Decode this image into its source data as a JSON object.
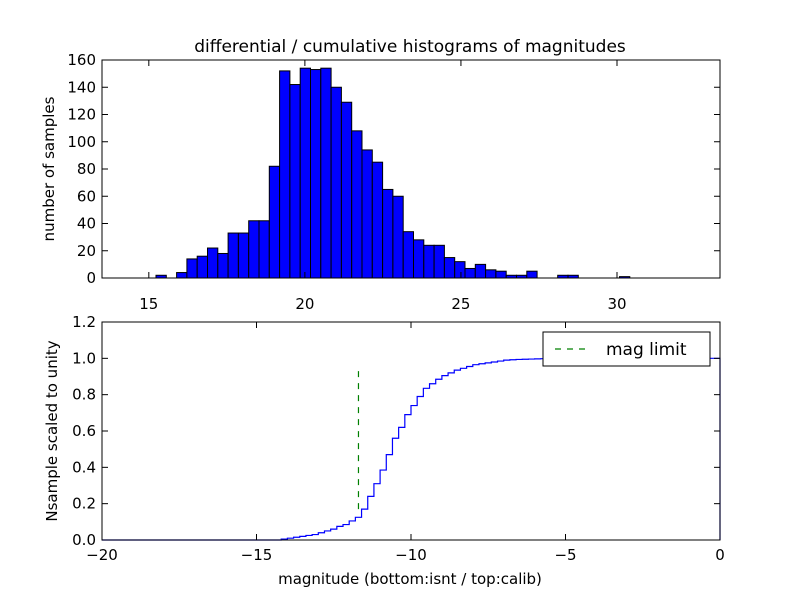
{
  "chart_data": [
    {
      "type": "bar",
      "subtype": "histogram",
      "title": "differential / cumulative histograms of magnitudes",
      "xlabel": "",
      "ylabel": "number of samples",
      "xlim": [
        13.5,
        33.3
      ],
      "ylim": [
        0,
        160
      ],
      "xticks": [
        15,
        20,
        25,
        30
      ],
      "xtick_labels": [
        "15",
        "20",
        "25",
        "30"
      ],
      "yticks": [
        0,
        20,
        40,
        60,
        80,
        100,
        120,
        140,
        160
      ],
      "ytick_labels": [
        "0",
        "20",
        "40",
        "60",
        "80",
        "100",
        "120",
        "140",
        "160"
      ],
      "bin_width": 0.33,
      "bin_start": 15.23,
      "values": [
        2,
        0,
        4,
        14,
        16,
        22,
        18,
        33,
        33,
        42,
        42,
        82,
        152,
        142,
        154,
        153,
        154,
        140,
        129,
        108,
        94,
        85,
        65,
        60,
        34,
        28,
        24,
        24,
        15,
        12,
        7,
        10,
        6,
        5,
        2,
        2,
        5,
        0,
        0,
        2,
        2,
        0,
        0,
        0,
        0,
        1
      ],
      "bar_color": "#0000ff",
      "edge_color": "#000000"
    },
    {
      "type": "line",
      "subtype": "cumulative-step",
      "xlabel": "magnitude (bottom:isnt / top:calib)",
      "ylabel": "Nsample scaled to unity",
      "xlim": [
        -20,
        0
      ],
      "ylim": [
        0,
        1.2
      ],
      "xticks": [
        -20,
        -15,
        -10,
        -5,
        0
      ],
      "xtick_labels": [
        "−20",
        "−15",
        "−10",
        "−5",
        "0"
      ],
      "yticks": [
        0,
        0.2,
        0.4,
        0.6,
        0.8,
        1.0,
        1.2
      ],
      "ytick_labels": [
        "0.0",
        "0.2",
        "0.4",
        "0.6",
        "0.8",
        "1.0",
        "1.2"
      ],
      "series": [
        {
          "name": "cumulative",
          "color": "#0000ff",
          "x": [
            -20,
            -14.2,
            -14,
            -13.8,
            -13.6,
            -13.4,
            -13.2,
            -13,
            -12.8,
            -12.6,
            -12.4,
            -12.2,
            -12,
            -11.8,
            -11.6,
            -11.4,
            -11.2,
            -11,
            -10.8,
            -10.6,
            -10.4,
            -10.2,
            -10,
            -9.8,
            -9.6,
            -9.4,
            -9.2,
            -9,
            -8.8,
            -8.6,
            -8.4,
            -8.2,
            -8,
            -7.8,
            -7.6,
            -7.4,
            -7.2,
            -7,
            -6.8,
            -6.6,
            -6.4,
            -6.2,
            -6,
            -5.8,
            -5.6,
            -5.2,
            -4.8,
            -4.4,
            -4,
            -3.5,
            0
          ],
          "y": [
            0.0,
            0.005,
            0.01,
            0.015,
            0.02,
            0.025,
            0.03,
            0.04,
            0.05,
            0.06,
            0.075,
            0.085,
            0.105,
            0.125,
            0.17,
            0.24,
            0.31,
            0.385,
            0.47,
            0.56,
            0.62,
            0.69,
            0.74,
            0.79,
            0.835,
            0.86,
            0.885,
            0.905,
            0.92,
            0.935,
            0.945,
            0.955,
            0.965,
            0.97,
            0.975,
            0.98,
            0.985,
            0.99,
            0.992,
            0.994,
            0.995,
            0.996,
            0.997,
            0.998,
            0.999,
            0.9995,
            0.9998,
            0.9999,
            1.0,
            1.0,
            1.0
          ]
        },
        {
          "name": "mag limit",
          "color": "#008000",
          "style": "dashed",
          "x": [
            -11.7,
            -11.7
          ],
          "y": [
            0.17,
            0.96
          ]
        }
      ],
      "legend": {
        "entries": [
          "mag limit"
        ],
        "placement": "top-right"
      }
    }
  ]
}
